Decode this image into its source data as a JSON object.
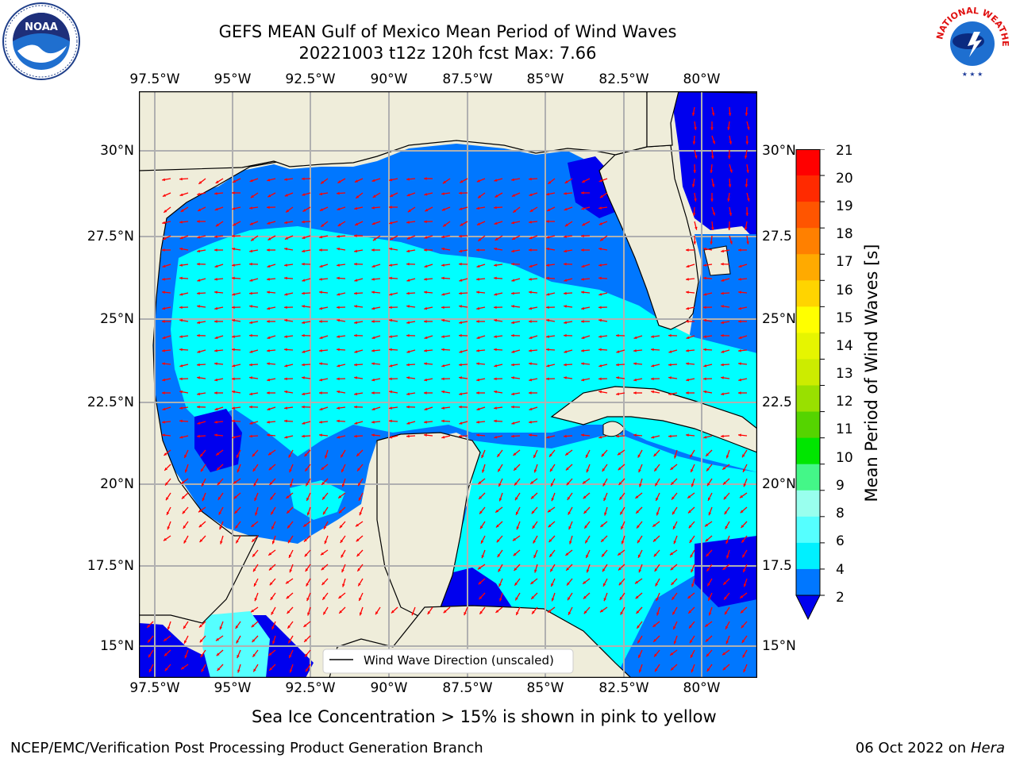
{
  "title": {
    "line1": "GEFS MEAN Gulf of Mexico Mean Period of Wind Waves",
    "line2": "20221003 t12z 120h fcst   Max: 7.66"
  },
  "map": {
    "lon_ticks": [
      "97.5°W",
      "95°W",
      "92.5°W",
      "90°W",
      "87.5°W",
      "85°W",
      "82.5°W",
      "80°W"
    ],
    "lat_ticks_left": [
      "30°N",
      "27.5°N",
      "25°N",
      "22.5°N",
      "20°N",
      "17.5°N",
      "15°N"
    ],
    "lat_ticks_right": [
      "30°N",
      "27.5",
      "25°N",
      "22.5",
      "20°N",
      "17.5",
      "15°N"
    ],
    "legend_label": "Wind Wave Direction (unscaled)",
    "colors": {
      "land": "#efedda",
      "level_2_4": "#0077ff",
      "level_4_6": "#00ffff",
      "level_0_2": "#0000ee",
      "arrow": "#ff0000",
      "grid": "#b0b0b0"
    }
  },
  "colorbar": {
    "label": "Mean Period of Wind Waves [s]",
    "ticks": [
      "21",
      "20",
      "19",
      "18",
      "17",
      "16",
      "15",
      "14",
      "13",
      "12",
      "11",
      "10",
      "9",
      "8",
      "6",
      "4",
      "2"
    ],
    "colors": [
      "#ff0000",
      "#ff2a00",
      "#ff5500",
      "#ff8000",
      "#ffaa00",
      "#ffd400",
      "#ffff00",
      "#e6f500",
      "#ccec00",
      "#99e000",
      "#55d400",
      "#00e600",
      "#44f788",
      "#99ffee",
      "#55ffff",
      "#00f0ff",
      "#0077ff"
    ]
  },
  "caption": "Sea Ice Concentration > 15% is shown in pink to yellow",
  "footer": {
    "left": "NCEP/EMC/Verification Post Processing Product Generation Branch",
    "right_date": "06 Oct 2022 on ",
    "right_host": "Hera"
  },
  "logos": {
    "left": "NOAA",
    "right_lines": [
      "NATIONAL WEATHER SERVICE"
    ]
  }
}
